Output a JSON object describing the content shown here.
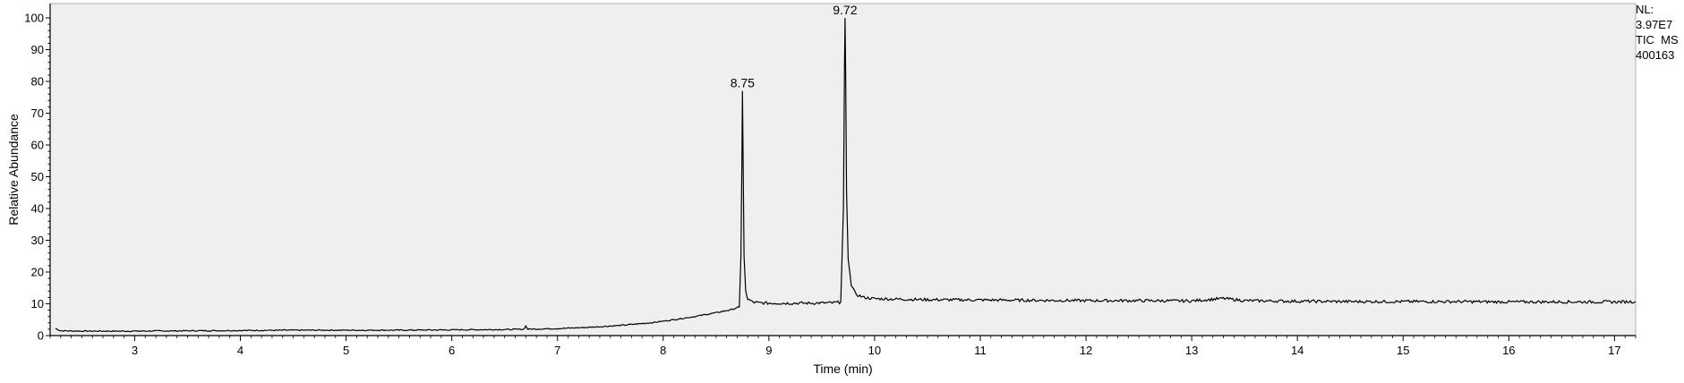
{
  "chart_data": {
    "type": "line",
    "title": "",
    "xlabel": "Time (min)",
    "ylabel": "Relative Abundance",
    "xlim": [
      2.2,
      17.2
    ],
    "ylim": [
      0,
      100
    ],
    "x_ticks": [
      3,
      4,
      5,
      6,
      7,
      8,
      9,
      10,
      11,
      12,
      13,
      14,
      15,
      16,
      17
    ],
    "y_ticks": [
      0,
      10,
      20,
      30,
      40,
      50,
      60,
      70,
      80,
      90,
      100
    ],
    "grid": false,
    "background": "#efefef",
    "line_color": "#000000",
    "series": [
      {
        "name": "",
        "x": [
          2.25,
          2.3,
          2.5,
          3.0,
          3.5,
          4.0,
          4.5,
          5.0,
          5.5,
          6.0,
          6.5,
          6.68,
          6.7,
          6.72,
          7.0,
          7.3,
          7.6,
          7.9,
          8.1,
          8.3,
          8.5,
          8.65,
          8.72,
          8.735,
          8.745,
          8.75,
          8.755,
          8.765,
          8.78,
          8.8,
          8.85,
          8.9,
          9.0,
          9.2,
          9.4,
          9.6,
          9.68,
          9.705,
          9.715,
          9.72,
          9.725,
          9.735,
          9.75,
          9.78,
          9.82,
          9.9,
          10.0,
          10.5,
          11.0,
          11.5,
          12.0,
          12.5,
          13.0,
          13.3,
          13.5,
          14.0,
          14.5,
          15.0,
          15.5,
          16.0,
          16.5,
          17.0,
          17.2
        ],
        "y": [
          2.2,
          1.5,
          1.4,
          1.4,
          1.5,
          1.6,
          1.7,
          1.7,
          1.7,
          1.8,
          1.9,
          2.0,
          3.0,
          2.0,
          2.2,
          2.6,
          3.2,
          4.1,
          5.0,
          6.0,
          7.2,
          8.2,
          9.0,
          25.0,
          55.0,
          77.0,
          60.0,
          25.0,
          14.0,
          11.5,
          10.5,
          10.3,
          10.2,
          10.2,
          10.2,
          10.3,
          10.5,
          40.0,
          85.0,
          100.0,
          85.0,
          45.0,
          24.0,
          16.0,
          13.0,
          12.0,
          11.6,
          11.3,
          11.2,
          11.1,
          11.0,
          11.0,
          10.9,
          11.7,
          11.0,
          10.8,
          10.7,
          10.7,
          10.7,
          10.6,
          10.6,
          10.6,
          10.7
        ]
      }
    ],
    "annotations": [
      {
        "text": "8.75",
        "x": 8.75,
        "y": 77.0
      },
      {
        "text": "9.72",
        "x": 9.72,
        "y": 100.0
      }
    ]
  },
  "info_box": {
    "line1": "NL:",
    "line2": "3.97E7",
    "line3": "TIC  MS",
    "line4": "400163"
  }
}
